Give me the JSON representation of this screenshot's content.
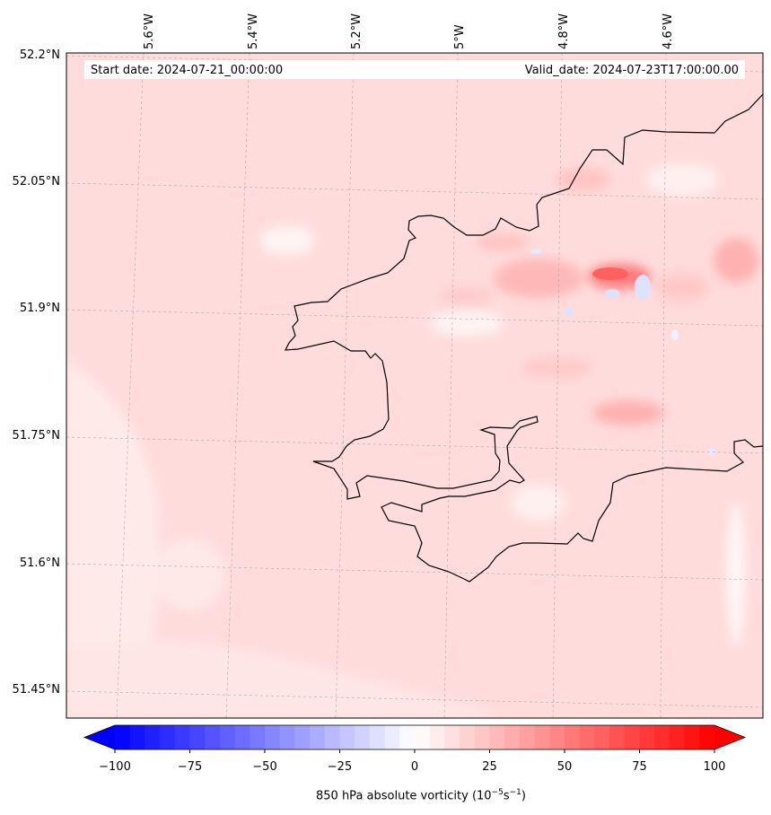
{
  "header": {
    "start_date": "Start date: 2024-07-21_00:00:00",
    "valid_date": "Valid_date: 2024-07-23T17:00:00.00"
  },
  "map": {
    "longitude_labels": [
      "5.6°W",
      "5.4°W",
      "5.2°W",
      "5°W",
      "4.8°W",
      "4.6°W"
    ],
    "latitude_labels": [
      "52.2°N",
      "52.05°N",
      "51.9°N",
      "51.75°N",
      "51.6°N",
      "51.45°N"
    ],
    "background_color": "#ffdcdc"
  },
  "colorbar": {
    "tick_labels": [
      "−100",
      "−75",
      "−50",
      "−25",
      "0",
      "25",
      "50",
      "75",
      "100"
    ],
    "title": "850 hPa absolute vorticity (10",
    "title_sup1": "−5",
    "title_mid": "s",
    "title_sup2": "−1",
    "title_end": ")",
    "min": -100,
    "max": 100,
    "colormap": "bwr"
  }
}
